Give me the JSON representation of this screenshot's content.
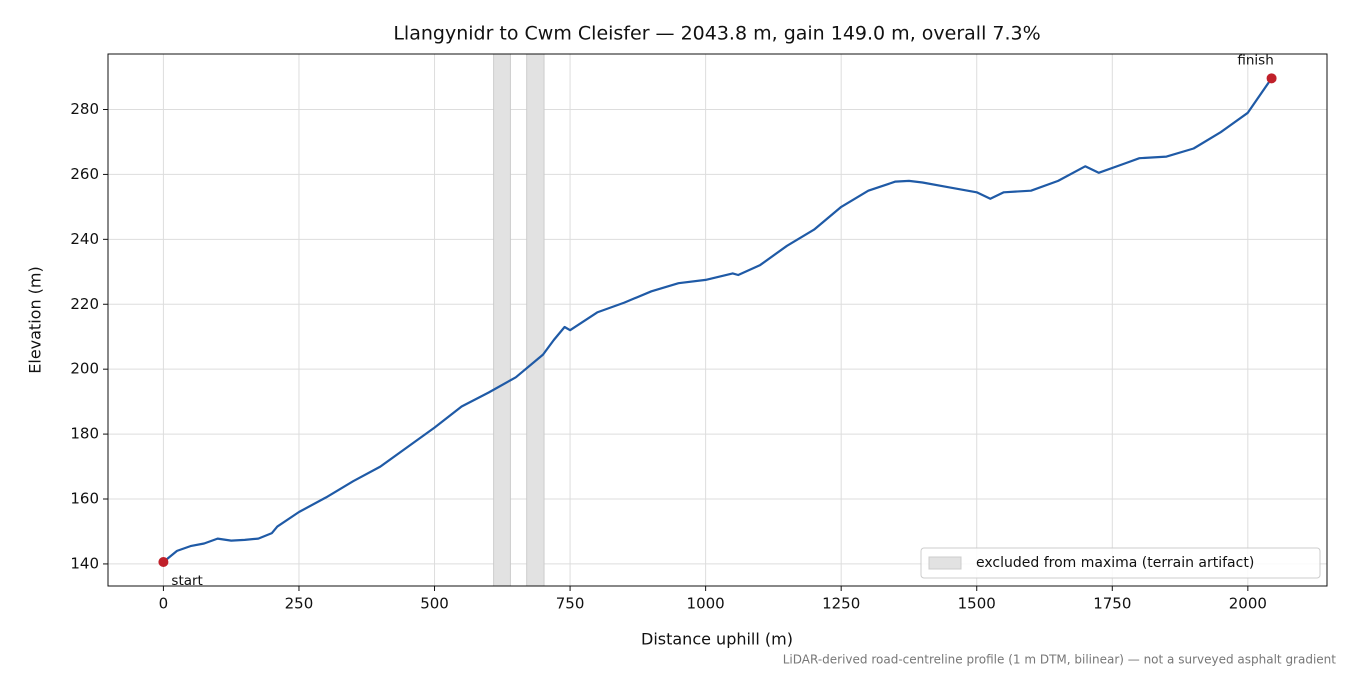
{
  "chart_data": {
    "type": "line",
    "title": "Llangynidr to Cwm Cleisfer — 2043.8 m, gain 149.0 m, overall 7.3%",
    "x_label": "Distance uphill (m)",
    "y_label": "Elevation (m)",
    "source_note": "LiDAR-derived road-centreline profile (1 m DTM, bilinear) — not a surveyed asphalt gradient",
    "x": [
      0,
      25,
      50,
      75,
      100,
      125,
      150,
      175,
      200,
      210,
      250,
      300,
      350,
      400,
      450,
      500,
      550,
      600,
      650,
      700,
      720,
      740,
      750,
      800,
      850,
      900,
      950,
      1000,
      1050,
      1060,
      1100,
      1150,
      1200,
      1250,
      1300,
      1350,
      1375,
      1400,
      1450,
      1500,
      1525,
      1550,
      1600,
      1650,
      1700,
      1725,
      1775,
      1800,
      1850,
      1900,
      1950,
      2000,
      2043.8
    ],
    "series": [
      {
        "name": "profile",
        "color": "#1f5aa6",
        "values": [
          140.6,
          144,
          145.5,
          146.3,
          147.8,
          147.2,
          147.4,
          147.8,
          149.5,
          151.5,
          156,
          160.5,
          165.5,
          170,
          176,
          182,
          188.5,
          192.8,
          197.5,
          204.5,
          209,
          213,
          212,
          217.5,
          220.5,
          224,
          226.5,
          227.5,
          229.5,
          229,
          232,
          238,
          243,
          250,
          255,
          257.8,
          258,
          257.5,
          256,
          254.5,
          252.5,
          254.5,
          255,
          258,
          262.5,
          260.5,
          263.5,
          265,
          265.5,
          268,
          273,
          279,
          289.6
        ]
      }
    ],
    "marker_color": "#c0202a",
    "annotations": [
      {
        "text": "start"
      },
      {
        "text": "finish"
      }
    ],
    "excluded": {
      "label": "excluded from maxima (terrain artifact)",
      "color": "#e2e2e2",
      "ranges": [
        [
          609,
          640
        ],
        [
          670,
          702
        ]
      ]
    },
    "xlim": [
      -102.19,
      2145.99
    ],
    "ylim": [
      133.2,
      297.1
    ],
    "xticks": [
      0,
      250,
      500,
      750,
      1000,
      1250,
      1500,
      1750,
      2000
    ],
    "yticks": [
      140,
      160,
      180,
      200,
      220,
      240,
      260,
      280
    ],
    "grid": true,
    "legend": "lower right"
  }
}
